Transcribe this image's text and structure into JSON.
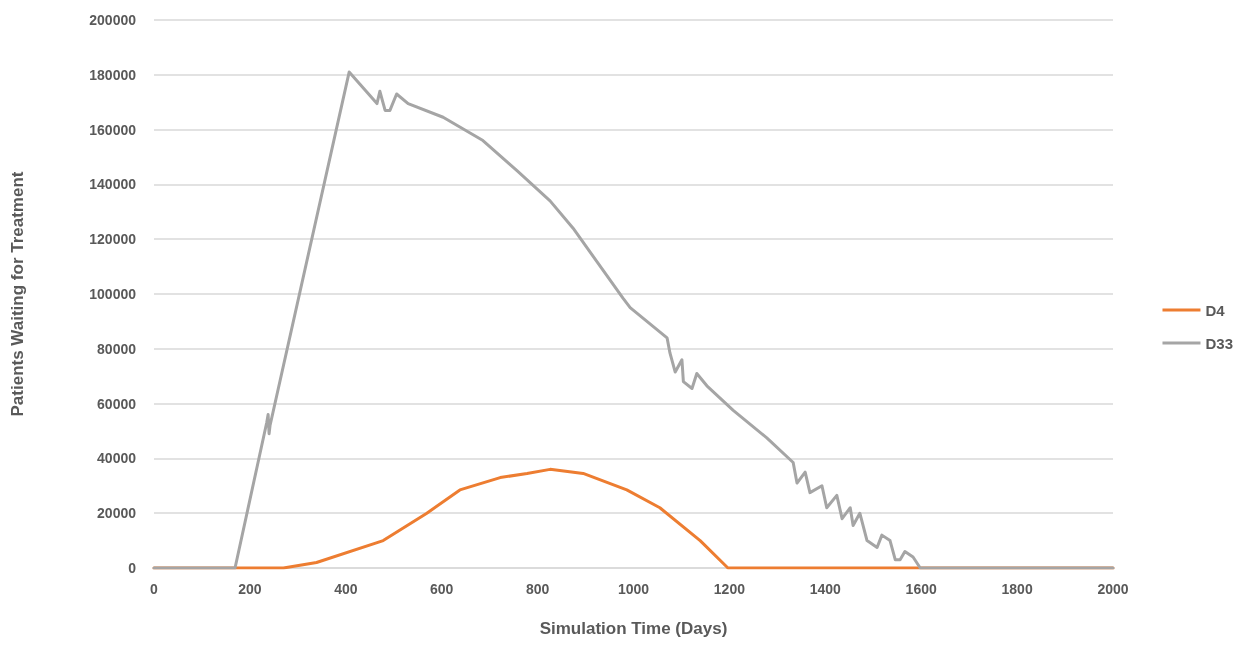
{
  "chart_data": {
    "type": "line",
    "xlabel": "Simulation Time (Days)",
    "ylabel": "Patients Waiting for Treatment",
    "xlim": [
      0,
      2000
    ],
    "xticks": [
      0,
      200,
      400,
      600,
      800,
      1000,
      1200,
      1400,
      1600,
      1800,
      2000
    ],
    "ylim": [
      0,
      200000
    ],
    "yticks": [
      0,
      20000,
      40000,
      60000,
      80000,
      100000,
      120000,
      140000,
      160000,
      180000,
      200000
    ],
    "grid": "y",
    "legend": "right",
    "marker": "none",
    "line_style": "solid",
    "series": [
      {
        "name": "D4",
        "color": "#ed7d31",
        "x": [
          0,
          172,
          270,
          339,
          478,
          569,
          638,
          722,
          778,
          826,
          895,
          986,
          1055,
          1139,
          1197,
          2000
        ],
        "values": [
          0,
          0,
          0,
          2000,
          10000,
          20000,
          28500,
          33000,
          34500,
          36000,
          34500,
          28500,
          22000,
          10000,
          0,
          0
        ]
      },
      {
        "name": "D33",
        "color": "#a5a5a5",
        "x": [
          0,
          169,
          235,
          238,
          240,
          242,
          407,
          465,
          471,
          482,
          492,
          506,
          530,
          603,
          686,
          757,
          826,
          874,
          978,
          993,
          1070,
          1076,
          1087,
          1101,
          1104,
          1122,
          1132,
          1153,
          1208,
          1278,
          1333,
          1341,
          1358,
          1368,
          1393,
          1403,
          1424,
          1435,
          1452,
          1458,
          1472,
          1487,
          1508,
          1518,
          1535,
          1546,
          1556,
          1566,
          1583,
          1598,
          2000
        ],
        "values": [
          0,
          0,
          53000,
          56000,
          49000,
          52000,
          181000,
          169500,
          174000,
          167000,
          167000,
          173000,
          169500,
          164500,
          156000,
          145000,
          134000,
          124000,
          98500,
          95000,
          84000,
          78500,
          71500,
          76000,
          68000,
          65500,
          71000,
          66500,
          57500,
          47500,
          38500,
          31000,
          35000,
          27500,
          30000,
          22000,
          26500,
          18000,
          22000,
          15500,
          20000,
          10000,
          7500,
          12000,
          10000,
          3000,
          3000,
          6000,
          4000,
          0,
          0
        ]
      }
    ]
  }
}
